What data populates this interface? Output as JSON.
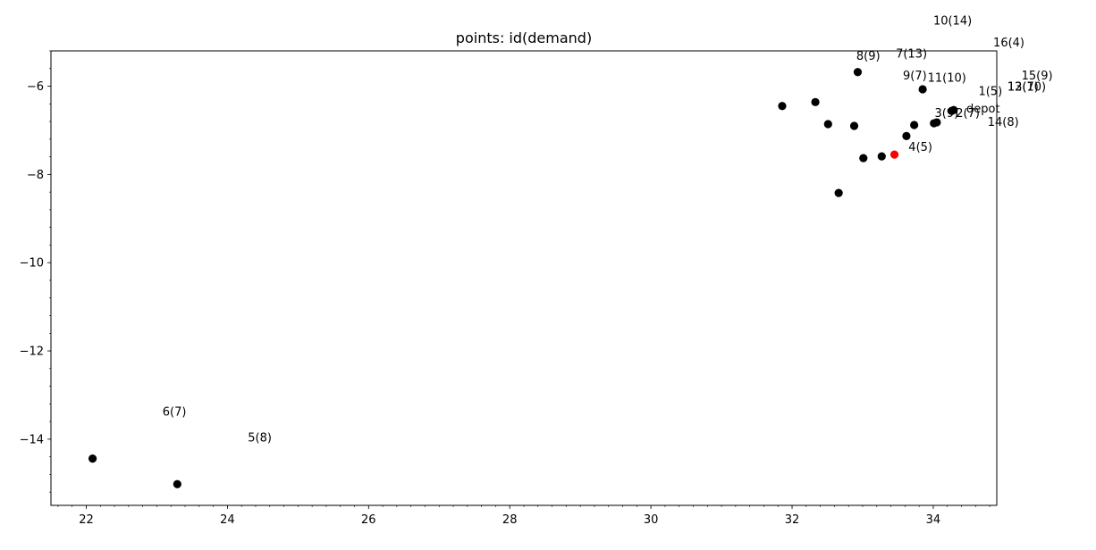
{
  "chart_data": {
    "type": "scatter",
    "title": "points: id(demand)",
    "xlabel": "",
    "ylabel": "",
    "xlim": [
      21.5,
      34.9
    ],
    "ylim": [
      -15.5,
      -5.2
    ],
    "x_ticks": [
      22,
      24,
      26,
      28,
      30,
      32,
      34
    ],
    "y_ticks": [
      -14,
      -12,
      -10,
      -8,
      -6
    ],
    "x_minor_step": 0.2,
    "y_minor_step": 0.4,
    "grid": false,
    "colors": {
      "point": "#000000",
      "depot": "#ff0000"
    },
    "points": [
      {
        "id": "p-a",
        "x": 31.86,
        "y": -6.45
      },
      {
        "id": "p-b",
        "x": 32.33,
        "y": -6.36
      },
      {
        "id": "p-c",
        "x": 32.51,
        "y": -6.86
      },
      {
        "id": "p-d",
        "x": 32.88,
        "y": -6.9
      },
      {
        "id": "p-e",
        "x": 32.93,
        "y": -5.68
      },
      {
        "id": "p-f",
        "x": 32.66,
        "y": -8.42
      },
      {
        "id": "p-g",
        "x": 33.01,
        "y": -7.63
      },
      {
        "id": "p-h",
        "x": 33.27,
        "y": -7.59
      },
      {
        "id": "p-i",
        "x": 33.62,
        "y": -7.13
      },
      {
        "id": "p-j",
        "x": 33.73,
        "y": -6.88
      },
      {
        "id": "p-k",
        "x": 33.85,
        "y": -6.07
      },
      {
        "id": "p-l",
        "x": 34.01,
        "y": -6.84
      },
      {
        "id": "p-m",
        "x": 34.05,
        "y": -6.82
      },
      {
        "id": "p-n",
        "x": 34.26,
        "y": -6.56
      },
      {
        "id": "p-o",
        "x": 34.29,
        "y": -6.54
      },
      {
        "id": "p-p",
        "x": 22.09,
        "y": -14.44
      },
      {
        "id": "p-q",
        "x": 23.29,
        "y": -15.02
      },
      {
        "id": "depot",
        "x": 33.45,
        "y": -7.55,
        "depot": true
      }
    ],
    "annotations": [
      {
        "text": "10(14)",
        "x": 34.0,
        "y": -4.6
      },
      {
        "text": "16(4)",
        "x": 34.85,
        "y": -5.1
      },
      {
        "text": "8(9)",
        "x": 32.91,
        "y": -5.4
      },
      {
        "text": "7(13)",
        "x": 33.47,
        "y": -5.35
      },
      {
        "text": "15(9)",
        "x": 35.25,
        "y": -5.85
      },
      {
        "text": "9(7)",
        "x": 33.57,
        "y": -5.85
      },
      {
        "text": "11(10)",
        "x": 33.92,
        "y": -5.9
      },
      {
        "text": "14(8)",
        "x": 34.77,
        "y": -6.9
      },
      {
        "text": "12(7)",
        "x": 35.05,
        "y": -6.1
      },
      {
        "text": "13(10)",
        "x": 35.05,
        "y": -6.1
      },
      {
        "text": "1(5)",
        "x": 34.64,
        "y": -6.2
      },
      {
        "text": "3(9)",
        "x": 34.02,
        "y": -6.7
      },
      {
        "text": "2(7)",
        "x": 34.32,
        "y": -6.7
      },
      {
        "text": "depot",
        "x": 34.47,
        "y": -6.6
      },
      {
        "text": "4(5)",
        "x": 33.65,
        "y": -7.47
      },
      {
        "text": "6(7)",
        "x": 23.08,
        "y": -13.47
      },
      {
        "text": "5(8)",
        "x": 24.29,
        "y": -14.05
      }
    ]
  }
}
